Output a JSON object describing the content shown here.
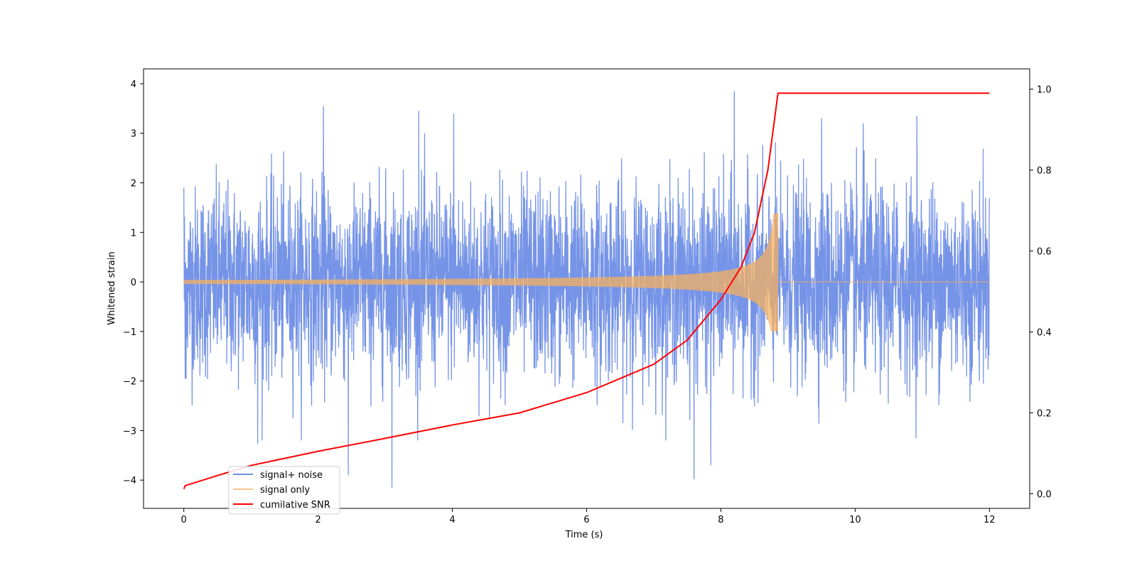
{
  "chart_data": {
    "type": "line",
    "xlabel": "Time (s)",
    "ylabel": "Whitened strain",
    "y2label": "",
    "xlim": [
      -0.6,
      12.6
    ],
    "ylim": [
      -4.57,
      4.3
    ],
    "y2lim": [
      -0.036,
      1.05
    ],
    "x_ticks": [
      0,
      2,
      4,
      6,
      8,
      10,
      12
    ],
    "y_ticks": [
      -4,
      -3,
      -2,
      -1,
      0,
      1,
      2,
      3,
      4
    ],
    "y2_ticks": [
      0.0,
      0.2,
      0.4,
      0.6,
      0.8,
      1.0
    ],
    "grid": false,
    "legend_position": "lower-left",
    "series": [
      {
        "name": "signal+ noise",
        "axis": "left",
        "color": "#6f8ee6",
        "description": "white-noise dominated strain, spanning roughly -2 to +2 with peaks near ±4",
        "peaks": [
          {
            "x": 0.0,
            "y": 1.9
          },
          {
            "x": 0.02,
            "y": -1.95
          },
          {
            "x": 1.1,
            "y": -3.27
          },
          {
            "x": 2.08,
            "y": 3.55
          },
          {
            "x": 2.45,
            "y": -3.9
          },
          {
            "x": 3.1,
            "y": -4.15
          },
          {
            "x": 3.5,
            "y": 3.45
          },
          {
            "x": 4.02,
            "y": 3.4
          },
          {
            "x": 7.6,
            "y": -3.98
          },
          {
            "x": 7.85,
            "y": -3.7
          },
          {
            "x": 8.2,
            "y": 3.85
          },
          {
            "x": 9.5,
            "y": 3.3
          },
          {
            "x": 10.12,
            "y": 3.2
          },
          {
            "x": 10.92,
            "y": 3.35
          }
        ]
      },
      {
        "name": "signal only",
        "axis": "left",
        "color": "#f5b060",
        "chirp": {
          "start_time": 0.0,
          "merger_time": 8.85,
          "end_time": 12.0,
          "start_amplitude": 0.04,
          "peak_amplitude_pos": 1.38,
          "peak_amplitude_neg": -1.0
        }
      },
      {
        "name": "cumilative SNR",
        "axis": "right",
        "color": "#ff0000",
        "x": [
          0.0,
          0.02,
          0.5,
          1.0,
          2.0,
          3.0,
          4.0,
          5.0,
          6.0,
          7.0,
          7.5,
          8.0,
          8.3,
          8.5,
          8.7,
          8.85,
          9.0,
          10.0,
          11.0,
          12.0
        ],
        "y": [
          0.012,
          0.02,
          0.045,
          0.07,
          0.105,
          0.137,
          0.17,
          0.2,
          0.25,
          0.32,
          0.38,
          0.48,
          0.56,
          0.645,
          0.8,
          0.99,
          0.99,
          0.99,
          0.99,
          0.99
        ]
      }
    ]
  }
}
